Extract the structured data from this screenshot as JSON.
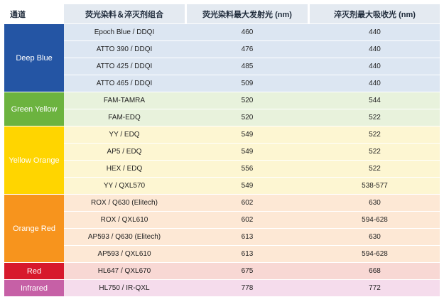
{
  "header": {
    "channel": "通道",
    "combo": "荧光染料＆淬灭剂组合",
    "emission": "荧光染料最大发射光 (nm)",
    "absorption": "淬灭剂最大吸收光 (nm)"
  },
  "groups": [
    {
      "name": "Deep Blue",
      "color": "#2455a4",
      "rowcolor": "#dce6f2"
    },
    {
      "name": "Green Yellow",
      "color": "#6cb33f",
      "rowcolor": "#e8f2dc"
    },
    {
      "name": "Yellow Orange",
      "color": "#ffd500",
      "rowcolor": "#fdf6d2"
    },
    {
      "name": "Orange Red",
      "color": "#f7941d",
      "rowcolor": "#fde8d5"
    },
    {
      "name": "Red",
      "color": "#d7192c",
      "rowcolor": "#f8d8d4"
    },
    {
      "name": "Infrared",
      "color": "#c660a6",
      "rowcolor": "#f5dcec"
    }
  ],
  "rows": [
    {
      "combo": "Epoch Blue / DDQI",
      "emission": "460",
      "absorption": "440"
    },
    {
      "combo": "ATTO 390 / DDQI",
      "emission": "476",
      "absorption": "440"
    },
    {
      "combo": "ATTO 425 / DDQI",
      "emission": "485",
      "absorption": "440"
    },
    {
      "combo": "ATTO 465 / DDQI",
      "emission": "509",
      "absorption": "440"
    },
    {
      "combo": "FAM-TAMRA",
      "emission": "520",
      "absorption": "544"
    },
    {
      "combo": "FAM-EDQ",
      "emission": "520",
      "absorption": "522"
    },
    {
      "combo": "YY / EDQ",
      "emission": "549",
      "absorption": "522"
    },
    {
      "combo": "AP5 / EDQ",
      "emission": "549",
      "absorption": "522"
    },
    {
      "combo": "HEX / EDQ",
      "emission": "556",
      "absorption": "522"
    },
    {
      "combo": "YY / QXL570",
      "emission": "549",
      "absorption": "538-577"
    },
    {
      "combo": "ROX / Q630 (Elitech)",
      "emission": "602",
      "absorption": "630"
    },
    {
      "combo": "ROX / QXL610",
      "emission": "602",
      "absorption": "594-628"
    },
    {
      "combo": "AP593 / Q630 (Elitech)",
      "emission": "613",
      "absorption": "630"
    },
    {
      "combo": "AP593 / QXL610",
      "emission": "613",
      "absorption": "594-628"
    },
    {
      "combo": "HL647 / QXL670",
      "emission": "675",
      "absorption": "668"
    },
    {
      "combo": "HL750 / IR-QXL",
      "emission": "778",
      "absorption": "772"
    }
  ]
}
